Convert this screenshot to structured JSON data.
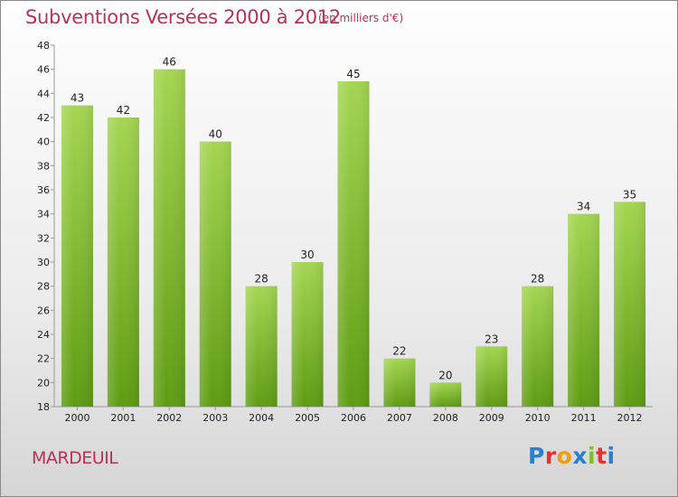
{
  "title": "Subventions Versées 2000 à 2012",
  "subtitle": "(en milliers d'€)",
  "place": "MARDEUIL",
  "logo": {
    "text": "Proxiti",
    "colors": [
      "#2a7fd0",
      "#e8312e",
      "#f39c12",
      "#2a7fd0",
      "#7dbd2a",
      "#e8312e",
      "#2a7fd0"
    ]
  },
  "colors": {
    "title": "#b8325a",
    "bar_light": "#a4d652",
    "bar_dark": "#5e9c12",
    "axis": "#999999"
  },
  "chart_data": {
    "type": "bar",
    "title": "Subventions Versées 2000 à 2012",
    "categories": [
      "2000",
      "2001",
      "2002",
      "2003",
      "2004",
      "2005",
      "2006",
      "2007",
      "2008",
      "2009",
      "2010",
      "2011",
      "2012"
    ],
    "values": [
      43,
      42,
      46,
      40,
      28,
      30,
      45,
      22,
      20,
      23,
      28,
      34,
      35
    ],
    "data_labels": [
      "43",
      "42",
      "46",
      "40",
      "28",
      "30",
      "45",
      "22",
      "20",
      "23",
      "28",
      "34",
      "35"
    ],
    "y_ticks": [
      "18",
      "20",
      "22",
      "24",
      "26",
      "28",
      "30",
      "32",
      "34",
      "36",
      "38",
      "40",
      "42",
      "44",
      "46",
      "48"
    ],
    "ylim": [
      18,
      48
    ],
    "grid": false,
    "legend": "none"
  }
}
